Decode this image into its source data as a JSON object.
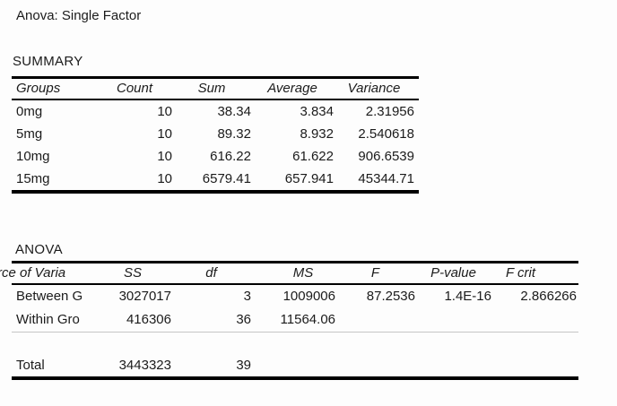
{
  "title": "Anova: Single Factor",
  "summary": {
    "heading": "SUMMARY",
    "columns": {
      "groups": "Groups",
      "count": "Count",
      "sum": "Sum",
      "average": "Average",
      "variance": "Variance"
    },
    "rows": [
      {
        "group": "0mg",
        "count": "10",
        "sum": "38.34",
        "average": "3.834",
        "variance": "2.31956"
      },
      {
        "group": "5mg",
        "count": "10",
        "sum": "89.32",
        "average": "8.932",
        "variance": "2.540618"
      },
      {
        "group": "10mg",
        "count": "10",
        "sum": "616.22",
        "average": "61.622",
        "variance": "906.6539"
      },
      {
        "group": "15mg",
        "count": "10",
        "sum": "6579.41",
        "average": "657.941",
        "variance": "45344.71"
      }
    ]
  },
  "anova": {
    "heading": "ANOVA",
    "columns": {
      "source": "rce of Varia",
      "ss": "SS",
      "df": "df",
      "ms": "MS",
      "f": "F",
      "p_value": "P-value",
      "f_crit": "F crit"
    },
    "rows": [
      {
        "source": "Between G",
        "ss": "3027017",
        "df": "3",
        "ms": "1009006",
        "f": "87.2536",
        "p_value": "1.4E-16",
        "f_crit": "2.866266"
      },
      {
        "source": "Within Gro",
        "ss": "416306",
        "df": "36",
        "ms": "11564.06",
        "f": "",
        "p_value": "",
        "f_crit": ""
      }
    ],
    "total_row": {
      "source": "Total",
      "ss": "3443323",
      "df": "39",
      "ms": "",
      "f": "",
      "p_value": "",
      "f_crit": ""
    }
  },
  "colors": {
    "text": "#1b1b1b",
    "border": "#000000",
    "faint_rule": "#c6c6c6",
    "background": "#fdfdfd"
  }
}
